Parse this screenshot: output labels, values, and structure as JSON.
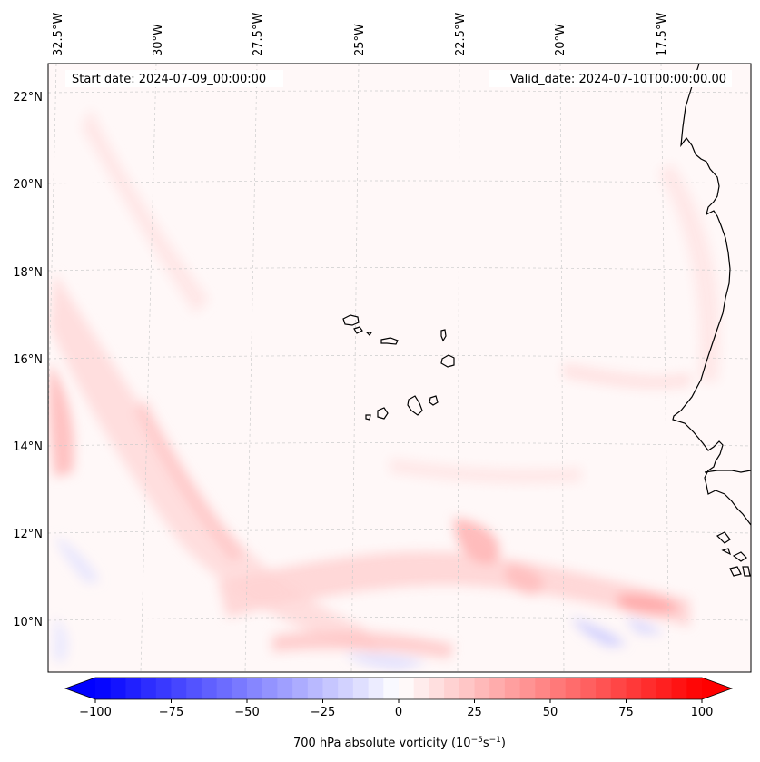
{
  "header": {
    "start_date": "Start date: 2024-07-09_00:00:00",
    "valid_date": "Valid_date: 2024-07-10T00:00:00.00"
  },
  "longitude_labels": [
    "32.5°W",
    "30°W",
    "27.5°W",
    "25°W",
    "22.5°W",
    "20°W",
    "17.5°W"
  ],
  "latitude_labels": [
    "22°N",
    "20°N",
    "18°N",
    "16°N",
    "14°N",
    "12°N",
    "10°N"
  ],
  "colorbar": {
    "label": "700 hPa absolute vorticity (10",
    "label_exp1": "−5",
    "label_mid": "s",
    "label_exp2": "−1",
    "label_end": ")",
    "ticks": [
      "−100",
      "−75",
      "−50",
      "−25",
      "0",
      "25",
      "50",
      "75",
      "100"
    ],
    "min": -100,
    "max": 100,
    "step": 5,
    "neg_color": "#0000ff",
    "pos_color": "#ff0000"
  },
  "map": {
    "background_color": "#fff8f8",
    "coast_color": "#000000"
  },
  "colors": {
    "grid": "#cccccc"
  }
}
